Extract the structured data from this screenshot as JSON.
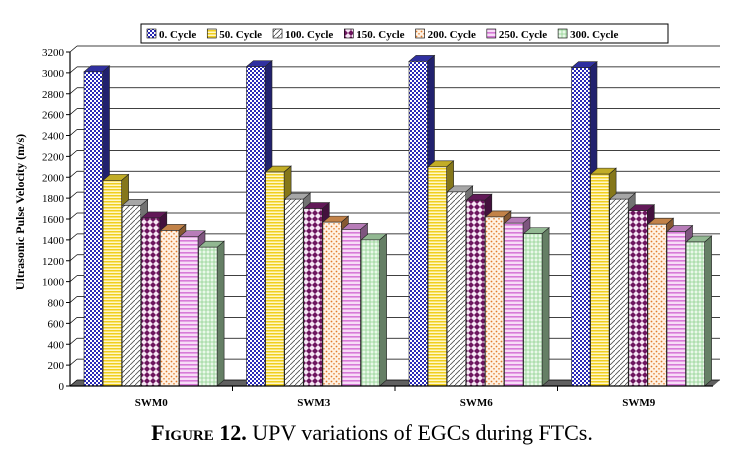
{
  "chart_data": {
    "type": "bar",
    "title": "",
    "xlabel": "",
    "ylabel": "Ultrasonic Pulse Velocity (m/s)",
    "ylim": [
      0,
      3200
    ],
    "ytick_step": 200,
    "grid": true,
    "legend_position": "top",
    "categories": [
      "SWM0",
      "SWM3",
      "SWM6",
      "SWM9"
    ],
    "series": [
      {
        "name": "0. Cycle",
        "color": "#3c3cc8",
        "values": [
          3010,
          3060,
          3110,
          3050
        ]
      },
      {
        "name": "50. Cycle",
        "color": "#f2d830",
        "values": [
          1970,
          2050,
          2100,
          2030
        ]
      },
      {
        "name": "100. Cycle",
        "color": "#cfcfcf",
        "values": [
          1730,
          1790,
          1860,
          1790
        ]
      },
      {
        "name": "150. Cycle",
        "color": "#7a1f6e",
        "values": [
          1610,
          1700,
          1780,
          1680
        ]
      },
      {
        "name": "200. Cycle",
        "color": "#f2a25a",
        "values": [
          1490,
          1570,
          1620,
          1550
        ]
      },
      {
        "name": "250. Cycle",
        "color": "#e59be6",
        "values": [
          1430,
          1500,
          1560,
          1480
        ]
      },
      {
        "name": "300. Cycle",
        "color": "#b7e6b7",
        "values": [
          1330,
          1400,
          1460,
          1380
        ]
      }
    ]
  },
  "caption": {
    "label": "Figure 12.",
    "text": " UPV variations of EGCs during FTCs."
  }
}
